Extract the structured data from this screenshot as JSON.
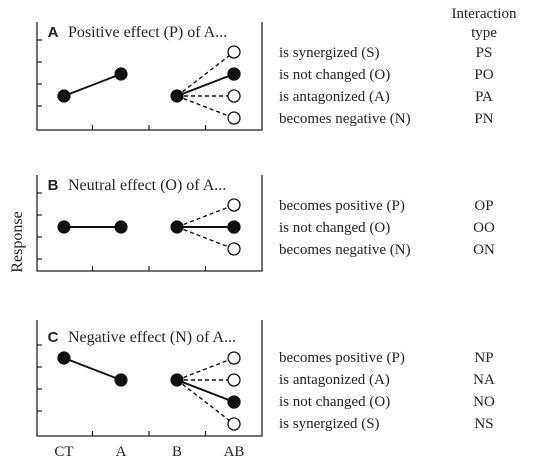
{
  "header": {
    "interaction_line1": "Interaction",
    "interaction_line2": "type"
  },
  "y_axis_label": "Response",
  "x_ticks": [
    "CT",
    "A",
    "B",
    "AB"
  ],
  "panels": [
    {
      "letter": "A",
      "title": "Positive effect (P) of A...",
      "ct_level": 2,
      "a_level": 3,
      "b_level": 2,
      "outcomes": [
        {
          "text": "is synergized (S)",
          "code": "PS",
          "level": 4,
          "filled": false
        },
        {
          "text": "is not changed (O)",
          "code": "PO",
          "level": 3,
          "filled": true
        },
        {
          "text": "is antagonized (A)",
          "code": "PA",
          "level": 2,
          "filled": false
        },
        {
          "text": "becomes negative (N)",
          "code": "PN",
          "level": 1,
          "filled": false
        }
      ]
    },
    {
      "letter": "B",
      "title": "Neutral effect (O) of A...",
      "ct_level": 2,
      "a_level": 2,
      "b_level": 2,
      "outcomes": [
        {
          "text": "becomes positive (P)",
          "code": "OP",
          "level": 3,
          "filled": false
        },
        {
          "text": "is not changed (O)",
          "code": "OO",
          "level": 2,
          "filled": true
        },
        {
          "text": "becomes negative (N)",
          "code": "ON",
          "level": 1,
          "filled": false
        }
      ]
    },
    {
      "letter": "C",
      "title": "Negative effect (N) of A...",
      "ct_level": 4,
      "a_level": 3,
      "b_level": 3,
      "outcomes": [
        {
          "text": "becomes positive (P)",
          "code": "NP",
          "level": 4,
          "filled": false
        },
        {
          "text": "is antagonized (A)",
          "code": "NA",
          "level": 3,
          "filled": false
        },
        {
          "text": "is not changed (O)",
          "code": "NO",
          "level": 2,
          "filled": true
        },
        {
          "text": "is synergized (S)",
          "code": "NS",
          "level": 1,
          "filled": false
        }
      ]
    }
  ]
}
